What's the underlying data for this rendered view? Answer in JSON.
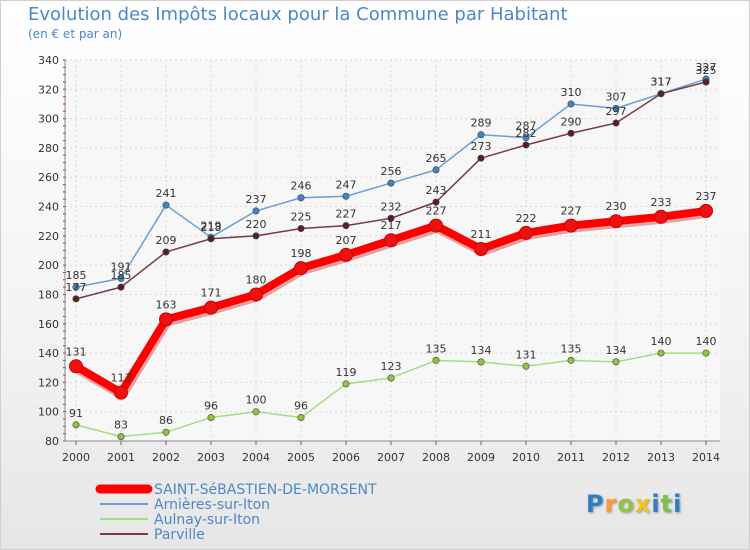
{
  "title": "Evolution des Impôts locaux pour la Commune par Habitant",
  "subtitle": "(en € et par an)",
  "logo": "Proxiti",
  "chart_data": {
    "type": "line",
    "title": "Evolution des Impôts locaux pour la Commune par Habitant",
    "ylabel": "(en € et par an)",
    "xlabel": "",
    "ylim": [
      80,
      340
    ],
    "yticks": [
      80,
      100,
      120,
      140,
      160,
      180,
      200,
      220,
      240,
      260,
      280,
      300,
      320,
      340
    ],
    "grid": true,
    "legend_position": "bottom-left",
    "x": [
      "2000",
      "2001",
      "2002",
      "2003",
      "2004",
      "2005",
      "2006",
      "2007",
      "2008",
      "2009",
      "2010",
      "2011",
      "2012",
      "2013",
      "2014"
    ],
    "series": [
      {
        "name": "Arnières-sur-Iton",
        "color": "#6a9fd3",
        "marker": "#3d85c6",
        "values": [
          185,
          191,
          241,
          219,
          237,
          246,
          247,
          256,
          265,
          289,
          287,
          310,
          307,
          317,
          327
        ]
      },
      {
        "name": "Parville",
        "color": "#7a3a3f",
        "marker": "#5a1f25",
        "values": [
          177,
          185,
          209,
          218,
          220,
          225,
          227,
          232,
          243,
          273,
          282,
          290,
          297,
          317,
          325
        ]
      },
      {
        "name": "Aulnay-sur-Iton",
        "color": "#a6dc80",
        "marker": "#8cc63f",
        "values": [
          91,
          83,
          86,
          96,
          100,
          96,
          119,
          123,
          135,
          134,
          131,
          135,
          134,
          140,
          140
        ]
      },
      {
        "name": "SAINT-SéBASTIEN-DE-MORSENT",
        "color": "#ff0000",
        "marker": "#ee1111",
        "values": [
          131,
          113,
          163,
          171,
          180,
          198,
          207,
          217,
          227,
          211,
          222,
          227,
          230,
          233,
          237
        ]
      }
    ],
    "legend": [
      "SAINT-SéBASTIEN-DE-MORSENT",
      "Arnières-sur-Iton",
      "Aulnay-sur-Iton",
      "Parville"
    ]
  }
}
